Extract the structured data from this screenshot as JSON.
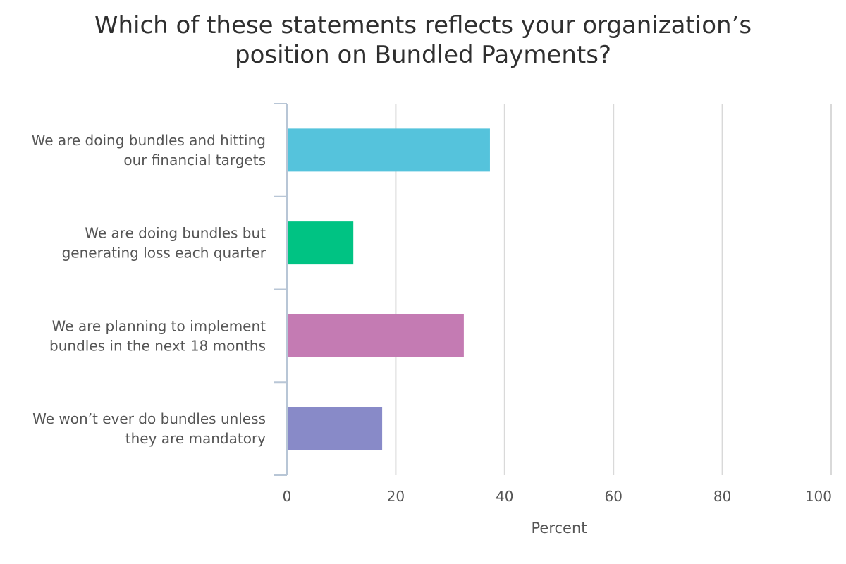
{
  "chart_data": {
    "type": "bar",
    "orientation": "horizontal",
    "title_lines": [
      "Which of these statements reflects your organization’s",
      "position on Bundled Payments?"
    ],
    "categories": [
      {
        "lines": [
          "We are doing bundles and hitting",
          "our financial targets"
        ],
        "value": 37.3,
        "color": "#55C3DC"
      },
      {
        "lines": [
          "We are doing bundles but",
          "generating loss each quarter"
        ],
        "value": 12.2,
        "color": "#00C383"
      },
      {
        "lines": [
          "We are planning to implement",
          "bundles in the next 18 months"
        ],
        "value": 32.5,
        "color": "#C47BB3"
      },
      {
        "lines": [
          "We won’t ever do bundles unless",
          "they are mandatory"
        ],
        "value": 17.5,
        "color": "#888AC8"
      }
    ],
    "xlabel": "Percent",
    "xlim": [
      0,
      100
    ],
    "xticks": [
      "0",
      "20",
      "40",
      "60",
      "80",
      "100"
    ],
    "grid": true,
    "legend": "none",
    "colors": {
      "grid": "#d9d9d9",
      "axis": "#b8c6d6",
      "text": "#555555",
      "title": "#2f2f2f"
    }
  }
}
